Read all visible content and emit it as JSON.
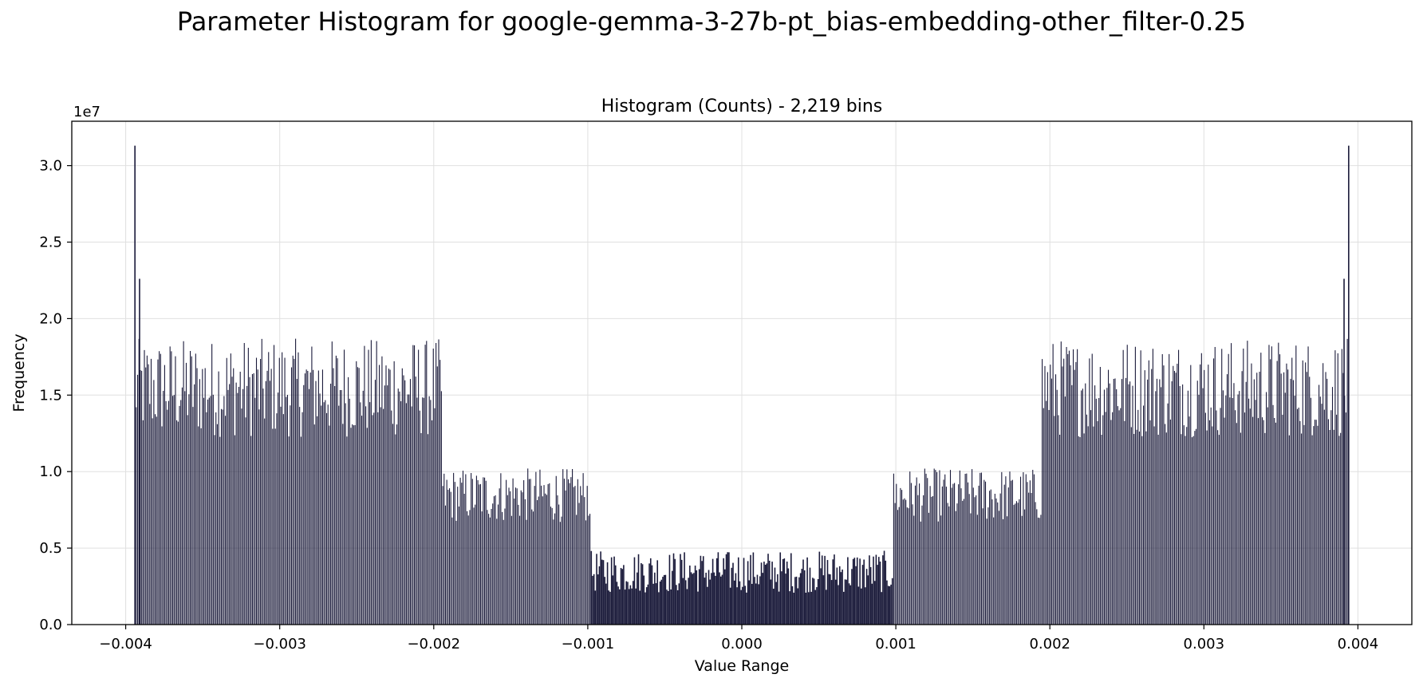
{
  "figure": {
    "suptitle": "Parameter Histogram for google-gemma-3-27b-pt_bias-embedding-other_filter-0.25"
  },
  "chart_data": {
    "type": "bar",
    "title": "Histogram (Counts) - 2,219 bins",
    "xlabel": "Value Range",
    "ylabel": "Frequency",
    "y_multiplier_label": "1e7",
    "xlim": [
      -0.00435,
      0.00435
    ],
    "ylim": [
      0,
      32900000.0
    ],
    "xticks": [
      -0.004,
      -0.003,
      -0.002,
      -0.001,
      0.0,
      0.001,
      0.002,
      0.003,
      0.004
    ],
    "xtick_labels": [
      "−0.004",
      "−0.003",
      "−0.002",
      "−0.001",
      "0.000",
      "0.001",
      "0.002",
      "0.003",
      "0.004"
    ],
    "yticks": [
      0,
      5000000,
      10000000,
      15000000,
      20000000,
      25000000,
      30000000
    ],
    "ytick_labels": [
      "0.0",
      "0.5",
      "1.0",
      "1.5",
      "2.0",
      "2.5",
      "3.0"
    ],
    "grid": true,
    "bar_color": "#1a1a3a",
    "bins": 2219,
    "regions": [
      {
        "x_range": [
          -0.00394,
          -0.00195
        ],
        "mean_count": 17000000
      },
      {
        "x_range": [
          -0.00195,
          -0.00098
        ],
        "mean_count": 9300000
      },
      {
        "x_range": [
          -0.00098,
          0.00098
        ],
        "mean_count": 4600000
      },
      {
        "x_range": [
          0.00098,
          0.00195
        ],
        "mean_count": 9300000
      },
      {
        "x_range": [
          0.00195,
          0.00394
        ],
        "mean_count": 17000000
      }
    ],
    "peaks": [
      {
        "x": -0.00394,
        "count": 31300000
      },
      {
        "x": -0.00391,
        "count": 22600000
      },
      {
        "x": 0.00391,
        "count": 22600000
      },
      {
        "x": 0.00394,
        "count": 31300000
      }
    ]
  }
}
